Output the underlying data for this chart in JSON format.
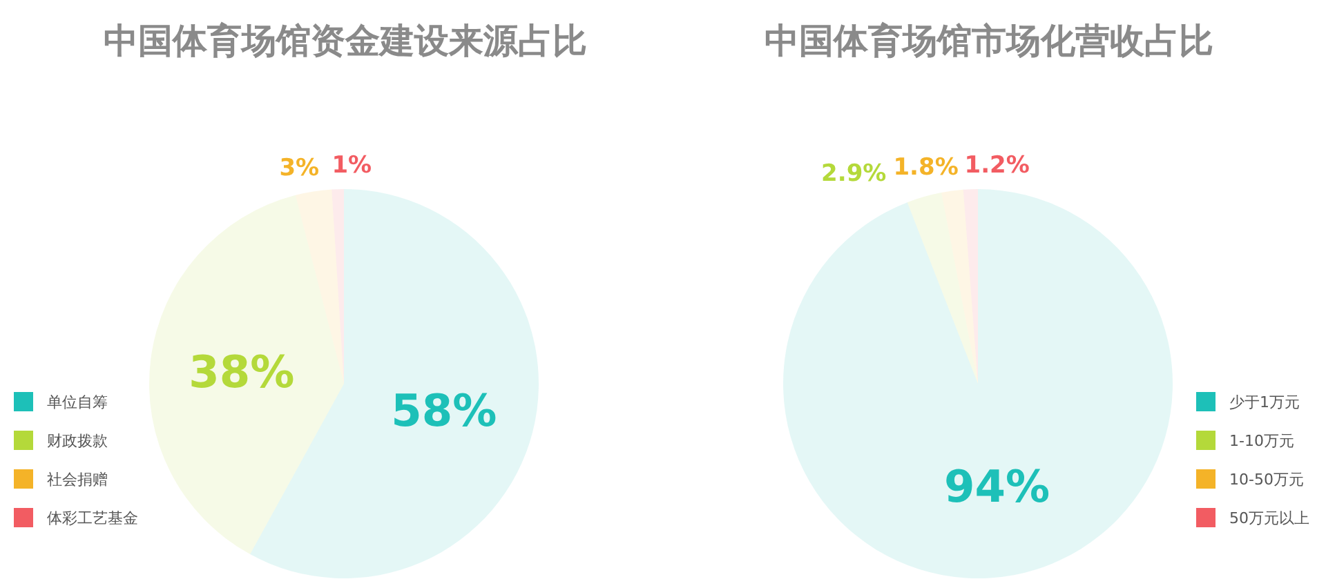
{
  "chart_data": [
    {
      "type": "pie",
      "title": "中国体育场馆资金建设来源占比",
      "categories": [
        "单位自筹",
        "财政拨款",
        "社会捐赠",
        "体彩工艺基金"
      ],
      "values": [
        58,
        38,
        3,
        1
      ],
      "colors": [
        "#1dc0b8",
        "#b4d93a",
        "#f4b328",
        "#f25c62"
      ],
      "value_labels": [
        "58%",
        "38%",
        "3%",
        "1%"
      ],
      "legend": "left"
    },
    {
      "type": "pie",
      "title": "中国体育场馆市场化营收占比",
      "categories": [
        "少于1万元",
        "1-10万元",
        "10-50万元",
        "50万元以上"
      ],
      "values": [
        94,
        2.9,
        1.8,
        1.2
      ],
      "colors": [
        "#1dc0b8",
        "#b4d93a",
        "#f4b328",
        "#f25c62"
      ],
      "value_labels": [
        "94%",
        "2.9%",
        "1.8%",
        "1.2%"
      ],
      "legend": "right"
    }
  ]
}
